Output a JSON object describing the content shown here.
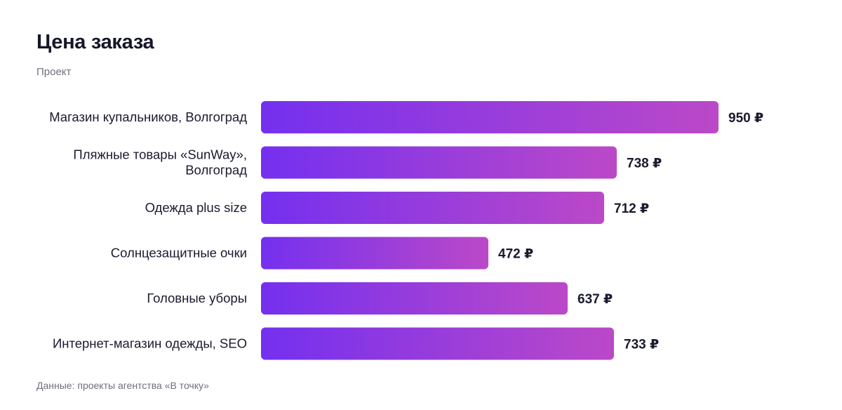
{
  "header": {
    "title": "Цена заказа",
    "subtitle": "Проект"
  },
  "footer": {
    "source": "Данные: проекты агентства «В точку»"
  },
  "colors": {
    "bar_start": "#7430ef",
    "bar_end": "#bb49c8"
  },
  "chart_data": {
    "type": "bar",
    "orientation": "horizontal",
    "title": "Цена заказа",
    "subtitle": "Проект",
    "categories": [
      [
        "Магазин купальников, Волгоград"
      ],
      [
        "Пляжные товары «SunWay»,",
        "Волгоград"
      ],
      [
        "Одежда plus size"
      ],
      [
        "Солнцезащитные очки"
      ],
      [
        "Головные уборы"
      ],
      [
        "Интернет-магазин одежды, SEO"
      ]
    ],
    "values": [
      950,
      738,
      712,
      472,
      637,
      733
    ],
    "value_unit": "₽",
    "xlim": [
      0,
      950
    ],
    "grid": false,
    "legend": "none"
  }
}
